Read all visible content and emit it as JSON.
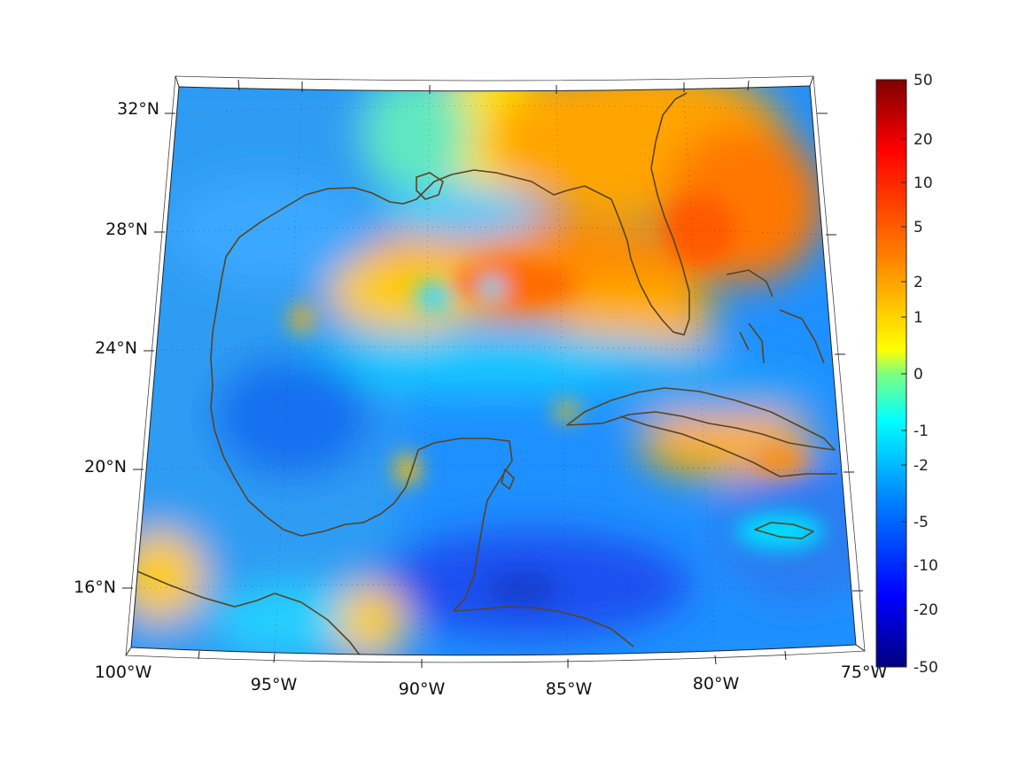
{
  "map": {
    "lon_labels": [
      "100°W",
      "95°W",
      "90°W",
      "85°W",
      "80°W",
      "75°W"
    ],
    "lat_labels": [
      "32°N",
      "28°N",
      "24°N",
      "20°N",
      "16°N"
    ],
    "extent": {
      "lon_min": -100,
      "lon_max": -75,
      "lat_min": 14,
      "lat_max": 33
    }
  },
  "colorbar": {
    "ticks": [
      "50",
      "20",
      "10",
      "5",
      "2",
      "1",
      "0",
      "-1",
      "-2",
      "-5",
      "-10",
      "-20",
      "-50"
    ],
    "colormap": "jet",
    "colors": [
      "#7f0000",
      "#ff0000",
      "#ff7f00",
      "#ffff00",
      "#7fff7f",
      "#00ffff",
      "#007fff",
      "#0000ff",
      "#00007f"
    ]
  },
  "colors": {
    "coastline": "#5a4320",
    "background": "#ffffff"
  }
}
